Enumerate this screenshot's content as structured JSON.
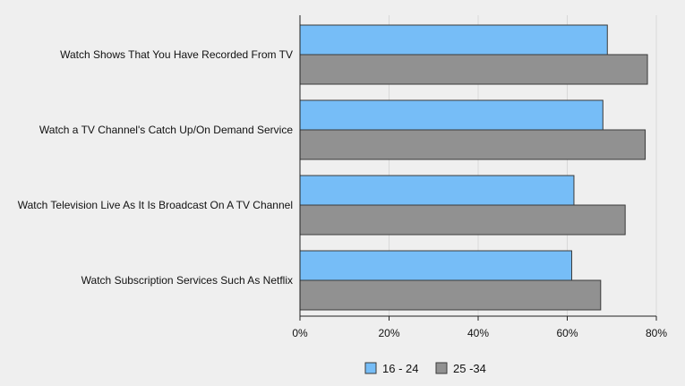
{
  "chart_data": {
    "type": "bar",
    "orientation": "horizontal",
    "categories": [
      "Watch Shows That You Have Recorded From TV",
      "Watch a TV Channel's Catch Up/On Demand Service",
      "Watch Television Live As It Is Broadcast On A TV Channel",
      "Watch Subscription Services Such As Netflix"
    ],
    "series": [
      {
        "name": "16 - 24",
        "color": "#76bdf7",
        "values": [
          69,
          68,
          61.5,
          61
        ]
      },
      {
        "name": "25 -34",
        "color": "#919191",
        "values": [
          78,
          77.5,
          73,
          67.5
        ]
      }
    ],
    "xlim": [
      0,
      80
    ],
    "xticks": [
      "0%",
      "20%",
      "40%",
      "60%",
      "80%"
    ],
    "xtick_values": [
      0,
      20,
      40,
      60,
      80
    ],
    "grid": "vertical",
    "legend": "bottom-center",
    "title": "",
    "xlabel": "",
    "ylabel": ""
  }
}
